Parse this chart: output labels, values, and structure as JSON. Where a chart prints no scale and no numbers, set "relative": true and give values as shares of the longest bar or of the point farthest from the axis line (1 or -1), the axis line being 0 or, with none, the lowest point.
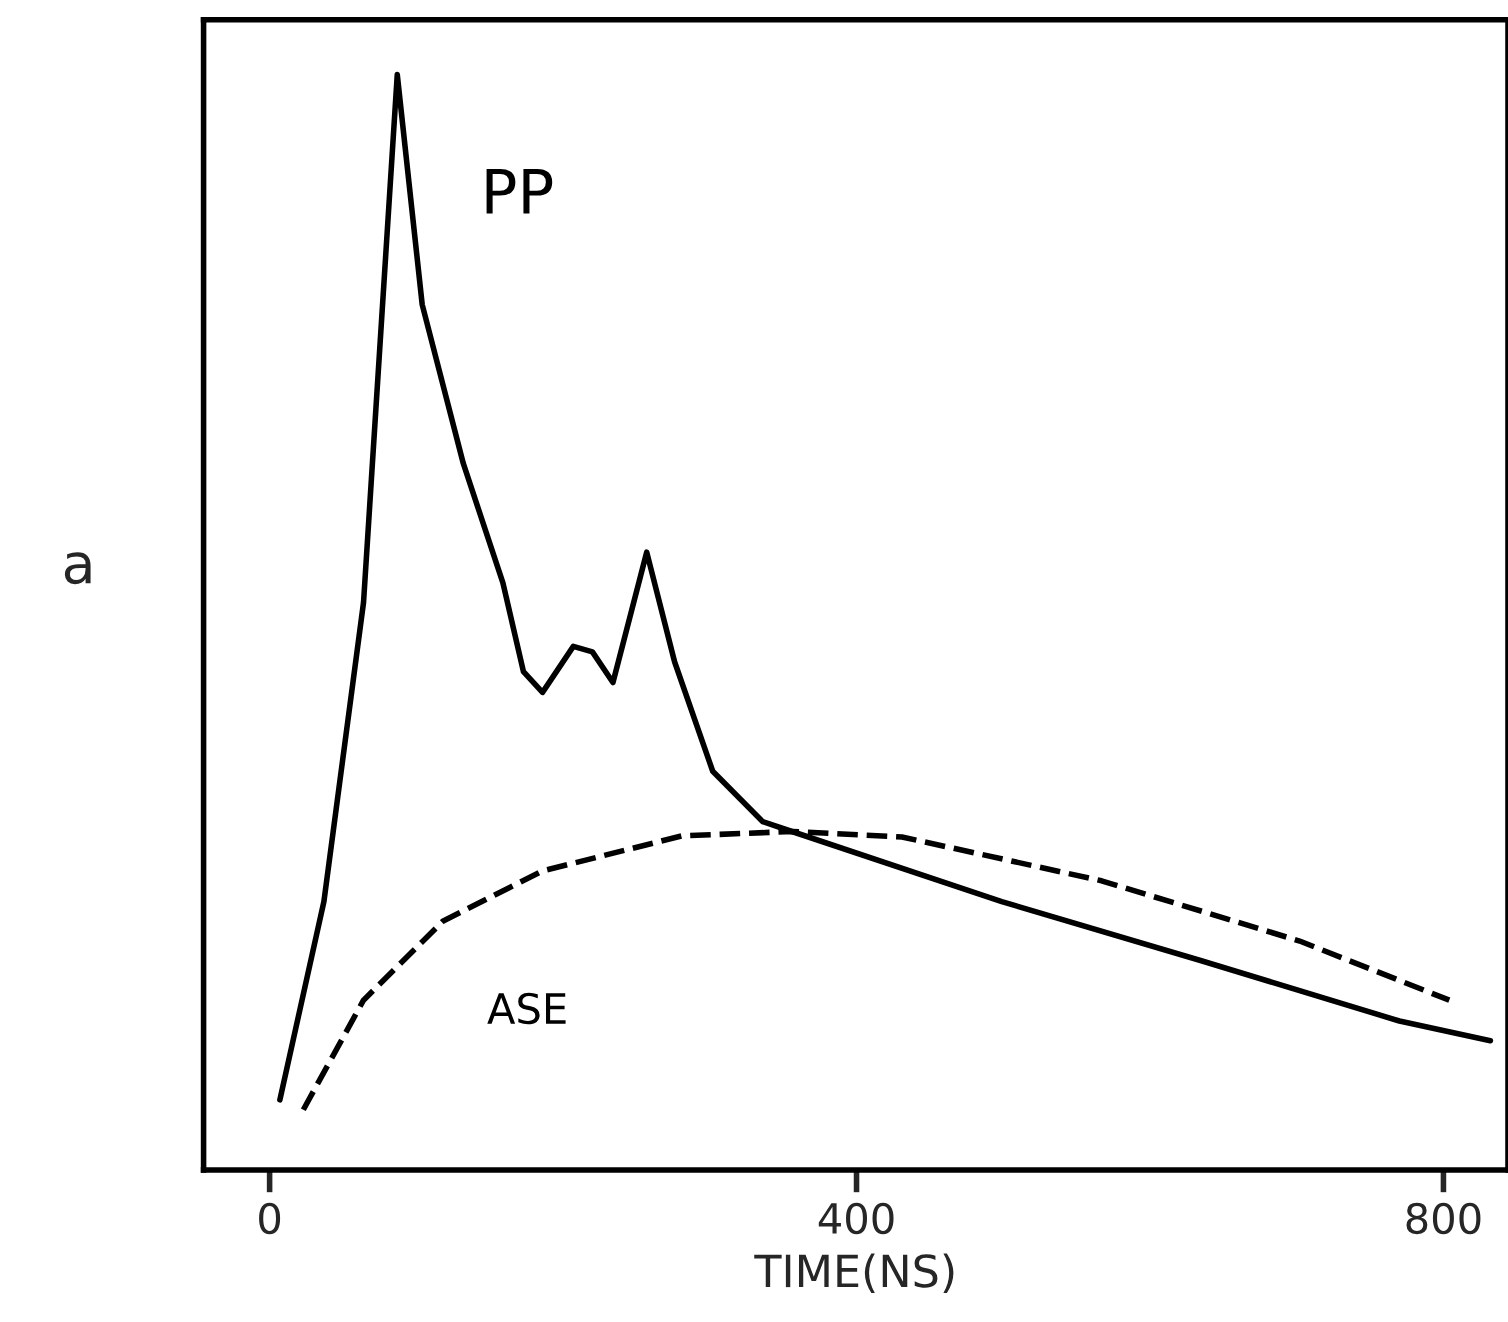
{
  "chart_data": {
    "type": "line",
    "xlabel": "TIME(NS)",
    "ylabel": "a",
    "relative": true,
    "xlim": [
      -45,
      844
    ],
    "xticks": [
      0,
      400,
      800
    ],
    "grid": false,
    "legend": false,
    "marker": "none",
    "series": [
      {
        "name": "PP",
        "color": "#000000",
        "line_style": "solid",
        "x": [
          7,
          37,
          64,
          87,
          104,
          132,
          159,
          173,
          186,
          207,
          220,
          234,
          257,
          276,
          302,
          336,
          356,
          499,
          635,
          770,
          832
        ],
        "values": [
          0.064,
          0.245,
          0.518,
          1.0,
          0.79,
          0.645,
          0.536,
          0.455,
          0.436,
          0.478,
          0.473,
          0.445,
          0.564,
          0.464,
          0.364,
          0.318,
          0.309,
          0.245,
          0.191,
          0.136,
          0.118
        ]
      },
      {
        "name": "ASE",
        "color": "#000000",
        "line_style": "dashed",
        "x": [
          23,
          64,
          118,
          186,
          281,
          356,
          431,
          567,
          702,
          804
        ],
        "values": [
          0.055,
          0.155,
          0.227,
          0.273,
          0.305,
          0.309,
          0.304,
          0.264,
          0.209,
          0.155
        ]
      }
    ]
  }
}
